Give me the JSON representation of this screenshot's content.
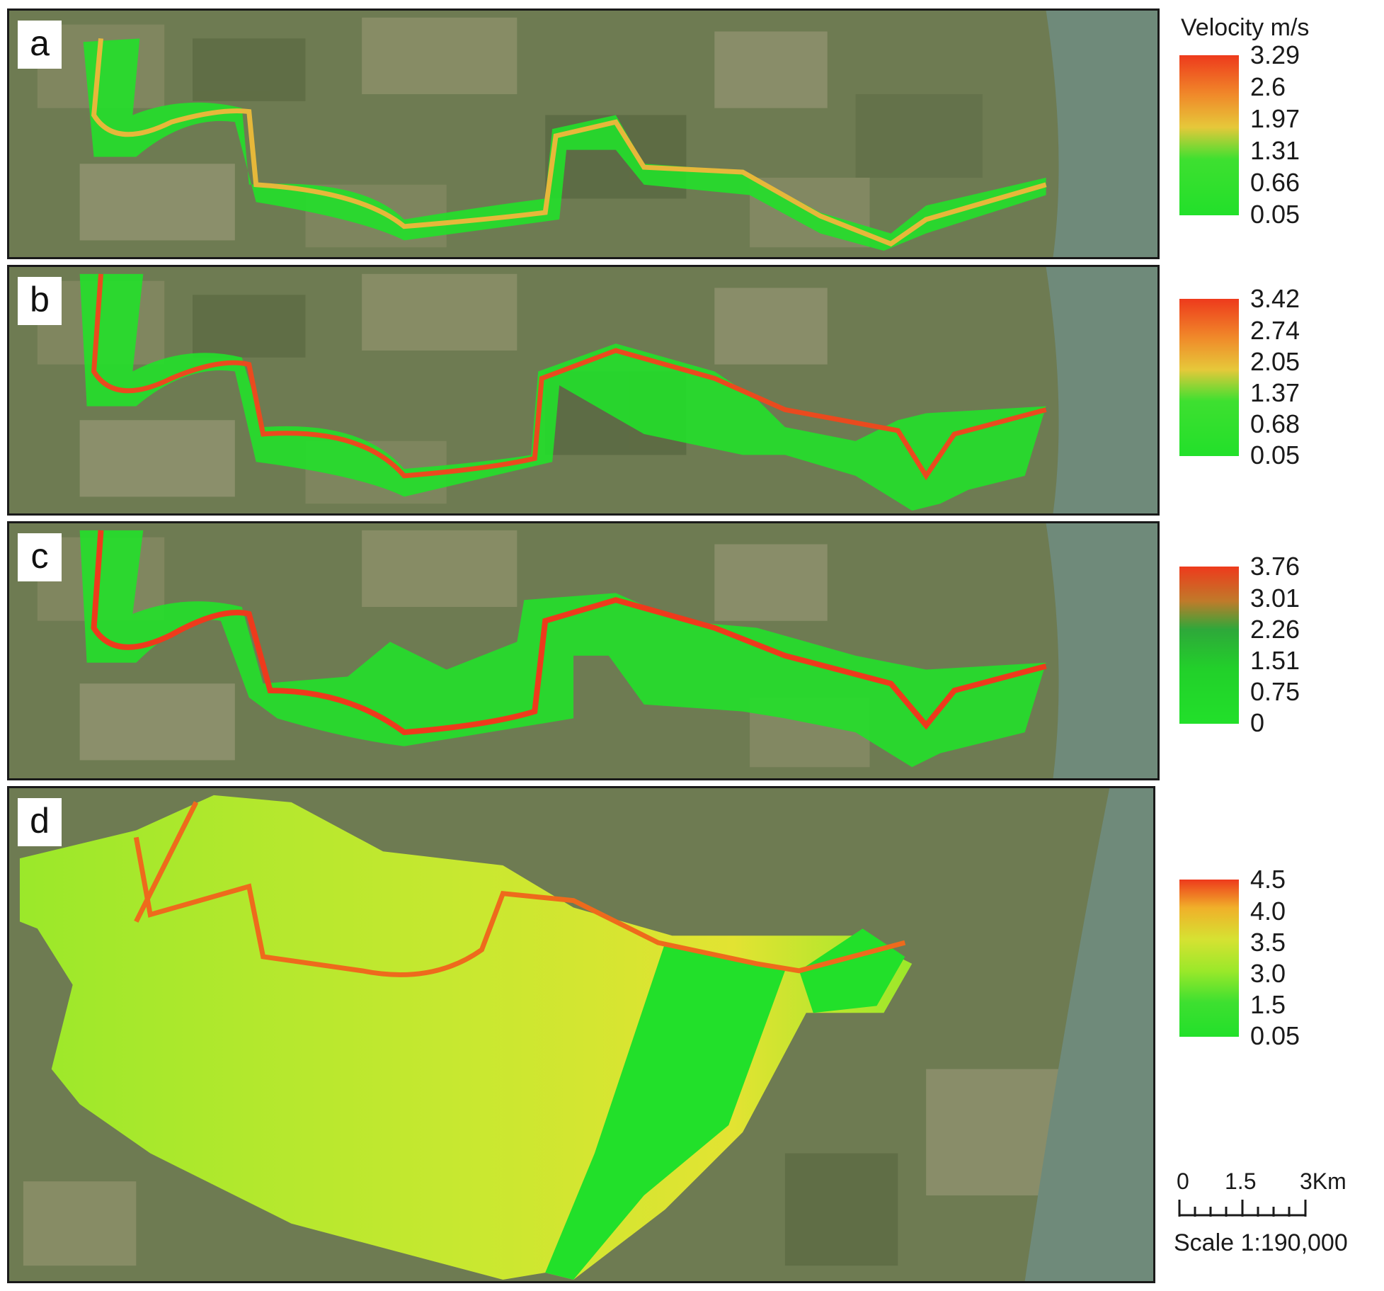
{
  "panels": [
    {
      "letter": "a"
    },
    {
      "letter": "b"
    },
    {
      "letter": "c"
    },
    {
      "letter": "d"
    }
  ],
  "legend_title": "Velocity m/s",
  "legends": [
    {
      "labels": [
        "3.29",
        "2.6",
        "1.97",
        "1.31",
        "0.66",
        "0.05"
      ]
    },
    {
      "labels": [
        "3.42",
        "2.74",
        "2.05",
        "1.37",
        "0.68",
        "0.05"
      ]
    },
    {
      "labels": [
        "3.76",
        "3.01",
        "2.26",
        "1.51",
        "0.75",
        "0"
      ]
    },
    {
      "labels": [
        "4.5",
        "4.0",
        "3.5",
        "3.0",
        "1.5",
        "0.05"
      ]
    }
  ],
  "scale": {
    "ticks": [
      "0",
      "1.5",
      "3Km"
    ],
    "caption": "Scale 1:190,000"
  },
  "colors": {
    "ground": "#6b7a4f",
    "field_dark": "#4f5d3a",
    "field_light": "#9a9a78",
    "river_main": "#6f8a7a",
    "flood_low": "#22e02a",
    "flood_mid": "#8fe82a",
    "flood_high": "#e6e232",
    "velocity_max": "#ee3a1c"
  }
}
